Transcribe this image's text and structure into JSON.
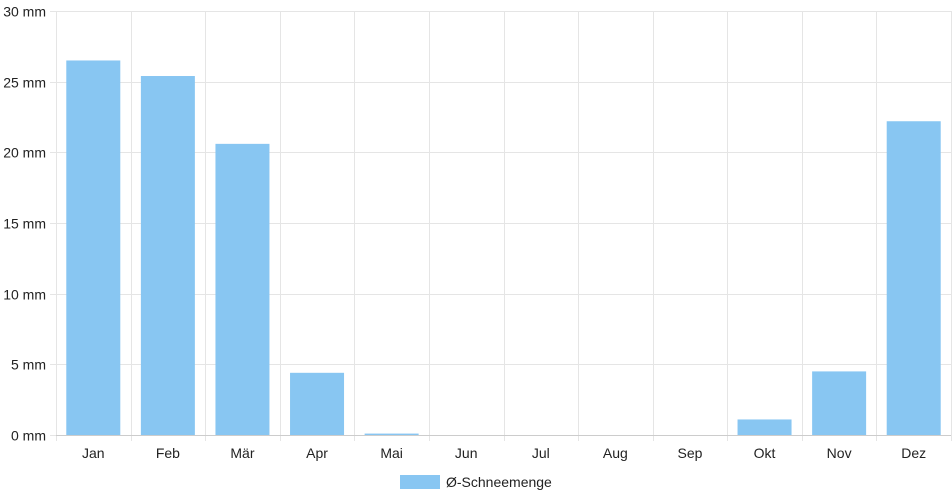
{
  "chart_data": {
    "type": "bar",
    "categories": [
      "Jan",
      "Feb",
      "Mär",
      "Apr",
      "Mai",
      "Jun",
      "Jul",
      "Aug",
      "Sep",
      "Okt",
      "Nov",
      "Dez"
    ],
    "series": [
      {
        "name": "Ø-Schneemenge",
        "values": [
          26.5,
          25.4,
          20.6,
          4.4,
          0.1,
          0,
          0,
          0,
          0,
          1.1,
          4.5,
          22.2
        ],
        "color": "#88c6f2"
      }
    ],
    "ylim": [
      0,
      30
    ],
    "yticks": [
      0,
      5,
      10,
      15,
      20,
      25,
      30
    ],
    "y_tick_suffix": " mm",
    "grid": true,
    "legend_position": "bottom-center",
    "xlabel": "",
    "ylabel": ""
  },
  "colors": {
    "grid": "#e5e5e5",
    "axis": "#cccccc",
    "text": "#222222"
  }
}
